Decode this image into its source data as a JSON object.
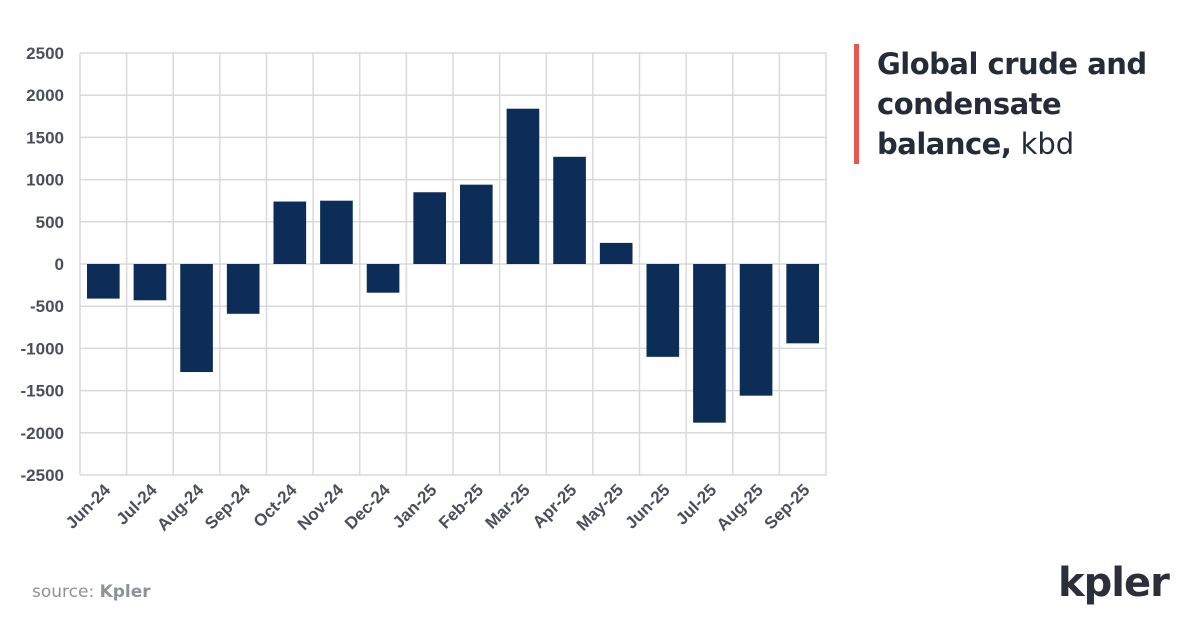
{
  "title": {
    "main": "Global crude and condensate balance,",
    "unit": "kbd",
    "accent_color": "#e8584f"
  },
  "source": {
    "prefix": "source:",
    "name": "Kpler"
  },
  "brand": {
    "logo_text": "kpler"
  },
  "chart_data": {
    "type": "bar",
    "title": "Global crude and condensate balance, kbd",
    "xlabel": "",
    "ylabel": "",
    "categories": [
      "Jun-24",
      "Jul-24",
      "Aug-24",
      "Sep-24",
      "Oct-24",
      "Nov-24",
      "Dec-24",
      "Jan-25",
      "Feb-25",
      "Mar-25",
      "Apr-25",
      "May-25",
      "Jun-25",
      "Jul-25",
      "Aug-25",
      "Sep-25"
    ],
    "values": [
      -410,
      -430,
      -1280,
      -590,
      740,
      750,
      -340,
      850,
      940,
      1840,
      1270,
      250,
      -1100,
      -1880,
      -1560,
      -940
    ],
    "ylim": [
      -2500,
      2500
    ],
    "yticks": [
      2500,
      2000,
      1500,
      1000,
      500,
      0,
      -500,
      -1000,
      -1500,
      -2000,
      -2500
    ],
    "grid": true,
    "bar_color": "#0c2d57",
    "grid_color": "#d9d9d9",
    "legend": "none"
  }
}
